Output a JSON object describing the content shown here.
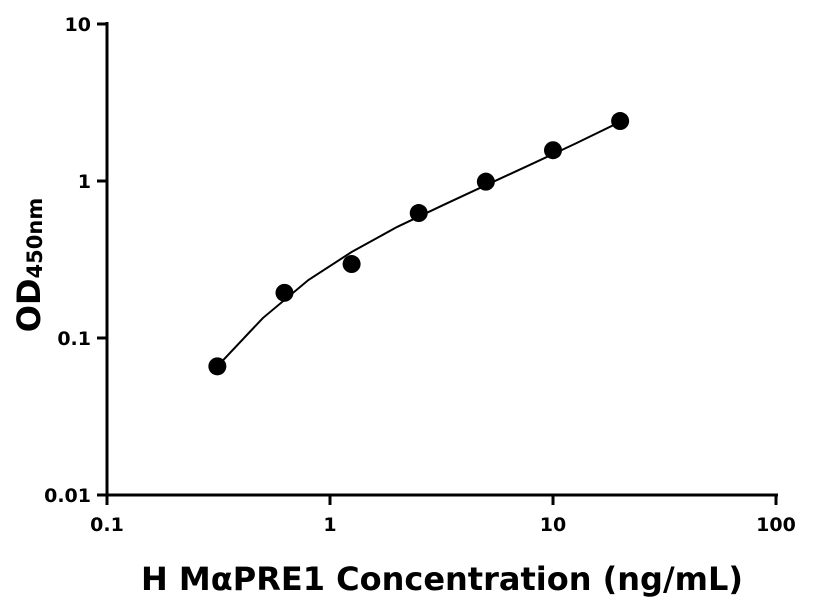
{
  "chart_data": {
    "type": "scatter",
    "xlabel": "H MαPRE1 Concentration (ng/mL)",
    "ylabel": "OD",
    "ylabel_sub": "450nm",
    "xlog": true,
    "ylog": true,
    "xlim": [
      0.1,
      100
    ],
    "ylim": [
      0.01,
      10
    ],
    "xticks": [
      0.1,
      1,
      10,
      100
    ],
    "yticks": [
      0.01,
      0.1,
      1,
      10
    ],
    "series": [
      {
        "type": "scatter",
        "color": "#000000",
        "x": [
          0.3125,
          0.625,
          1.25,
          2.5,
          5,
          10,
          20
        ],
        "values": [
          0.066,
          0.194,
          0.296,
          0.625,
          0.99,
          1.57,
          2.41
        ]
      },
      {
        "type": "line",
        "color": "#000000",
        "x": [
          0.3125,
          0.5,
          0.8,
          1.25,
          2,
          3.2,
          5,
          8,
          12.5,
          20
        ],
        "values": [
          0.066,
          0.134,
          0.234,
          0.353,
          0.51,
          0.7,
          0.94,
          1.28,
          1.72,
          2.38
        ]
      }
    ]
  }
}
